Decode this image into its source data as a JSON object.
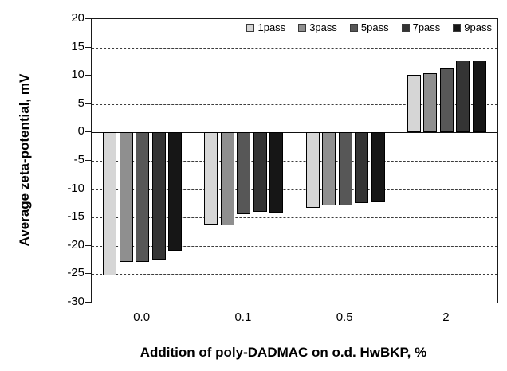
{
  "chart_data": {
    "type": "bar",
    "title": "",
    "xlabel": "Addition of poly-DADMAC on o.d. HwBKP, %",
    "ylabel": "Average zeta-potential, mV",
    "categories": [
      "0.0",
      "0.1",
      "0.5",
      "2"
    ],
    "series": [
      {
        "name": "1pass",
        "color": "#d6d6d6",
        "values": [
          -25.2,
          -16.3,
          -13.3,
          10.2
        ]
      },
      {
        "name": "3pass",
        "color": "#8f8f8f",
        "values": [
          -22.8,
          -16.4,
          -12.8,
          10.4
        ]
      },
      {
        "name": "5pass",
        "color": "#575757",
        "values": [
          -22.9,
          -14.4,
          -12.9,
          11.3
        ]
      },
      {
        "name": "7pass",
        "color": "#343434",
        "values": [
          -22.4,
          -14.0,
          -12.4,
          12.7
        ]
      },
      {
        "name": "9pass",
        "color": "#161616",
        "values": [
          -20.9,
          -14.1,
          -12.3,
          12.7
        ]
      }
    ],
    "ylim": [
      -30,
      20
    ],
    "yticks": [
      20,
      15,
      10,
      5,
      0,
      -5,
      -10,
      -15,
      -20,
      -25,
      -30
    ],
    "grid": "horizontal-dashed",
    "zero_line": true,
    "legend_position": "inside-top-right",
    "bar_border_color": "#000000",
    "axis_color": "#1a1a1a"
  }
}
